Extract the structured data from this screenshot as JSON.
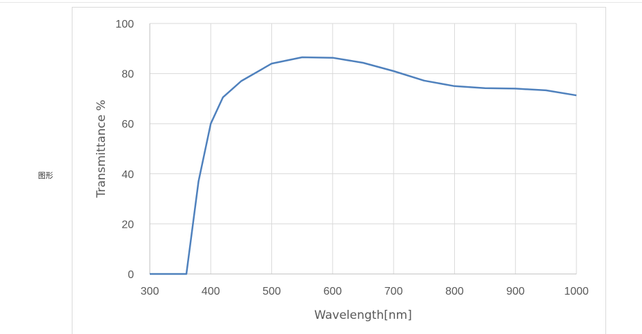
{
  "side_label": "图形",
  "chart_data": {
    "type": "line",
    "title": "",
    "xlabel": "Wavelength[nm]",
    "ylabel": "Transmittance %",
    "xlim": [
      300,
      1000
    ],
    "ylim": [
      0,
      100
    ],
    "xticks": [
      300,
      400,
      500,
      600,
      700,
      800,
      900,
      1000
    ],
    "yticks": [
      0,
      20,
      40,
      60,
      80,
      100
    ],
    "grid": true,
    "legend": "none",
    "series": [
      {
        "color": "#4f81bd",
        "x": [
          300,
          360,
          380,
          400,
          420,
          450,
          500,
          550,
          600,
          650,
          700,
          750,
          800,
          850,
          900,
          950,
          1000
        ],
        "y": [
          0,
          0,
          37,
          60,
          70.5,
          77,
          84,
          86.5,
          86.3,
          84.3,
          81,
          77.2,
          75,
          74.2,
          74,
          73.3,
          71.3
        ]
      }
    ]
  }
}
